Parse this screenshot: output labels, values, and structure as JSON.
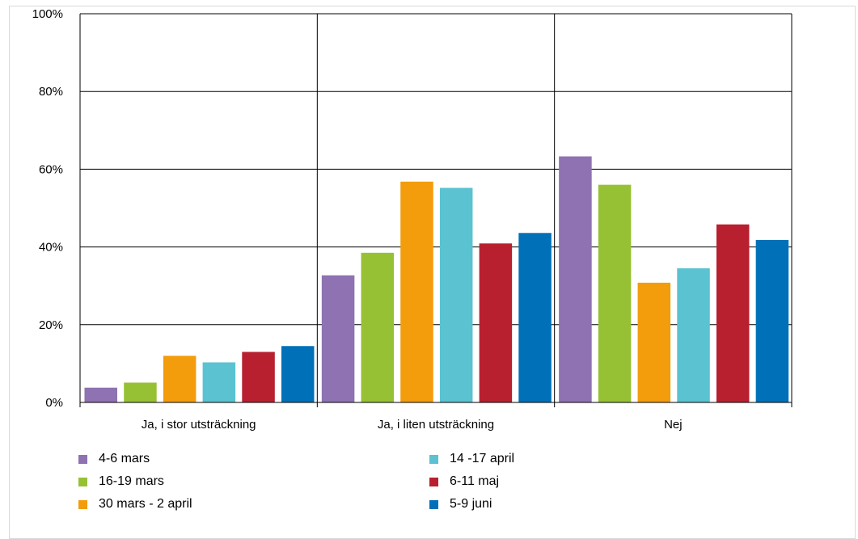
{
  "chart_data": {
    "type": "bar",
    "categories": [
      "Ja, i stor utsträckning",
      "Ja, i liten utsträckning",
      "Nej"
    ],
    "series": [
      {
        "name": "4-6 mars",
        "color": "#8E72B2",
        "values": [
          3.8,
          32.7,
          63.3
        ]
      },
      {
        "name": "16-19 mars",
        "color": "#97C134",
        "values": [
          5.1,
          38.5,
          56.0
        ]
      },
      {
        "name": "30 mars - 2 april",
        "color": "#F39C0C",
        "values": [
          12.0,
          56.8,
          30.8
        ]
      },
      {
        "name": "14 -17 april",
        "color": "#5AC2D0",
        "values": [
          10.3,
          55.2,
          34.5
        ]
      },
      {
        "name": "6-11 maj",
        "color": "#B82030",
        "values": [
          13.0,
          40.9,
          45.8
        ]
      },
      {
        "name": "5-9 juni",
        "color": "#0070B8",
        "values": [
          14.5,
          43.6,
          41.8
        ]
      }
    ],
    "ylim": [
      0,
      100
    ],
    "yticks": [
      "0%",
      "20%",
      "40%",
      "60%",
      "80%",
      "100%"
    ],
    "grid": true,
    "legend_position": "bottom"
  }
}
